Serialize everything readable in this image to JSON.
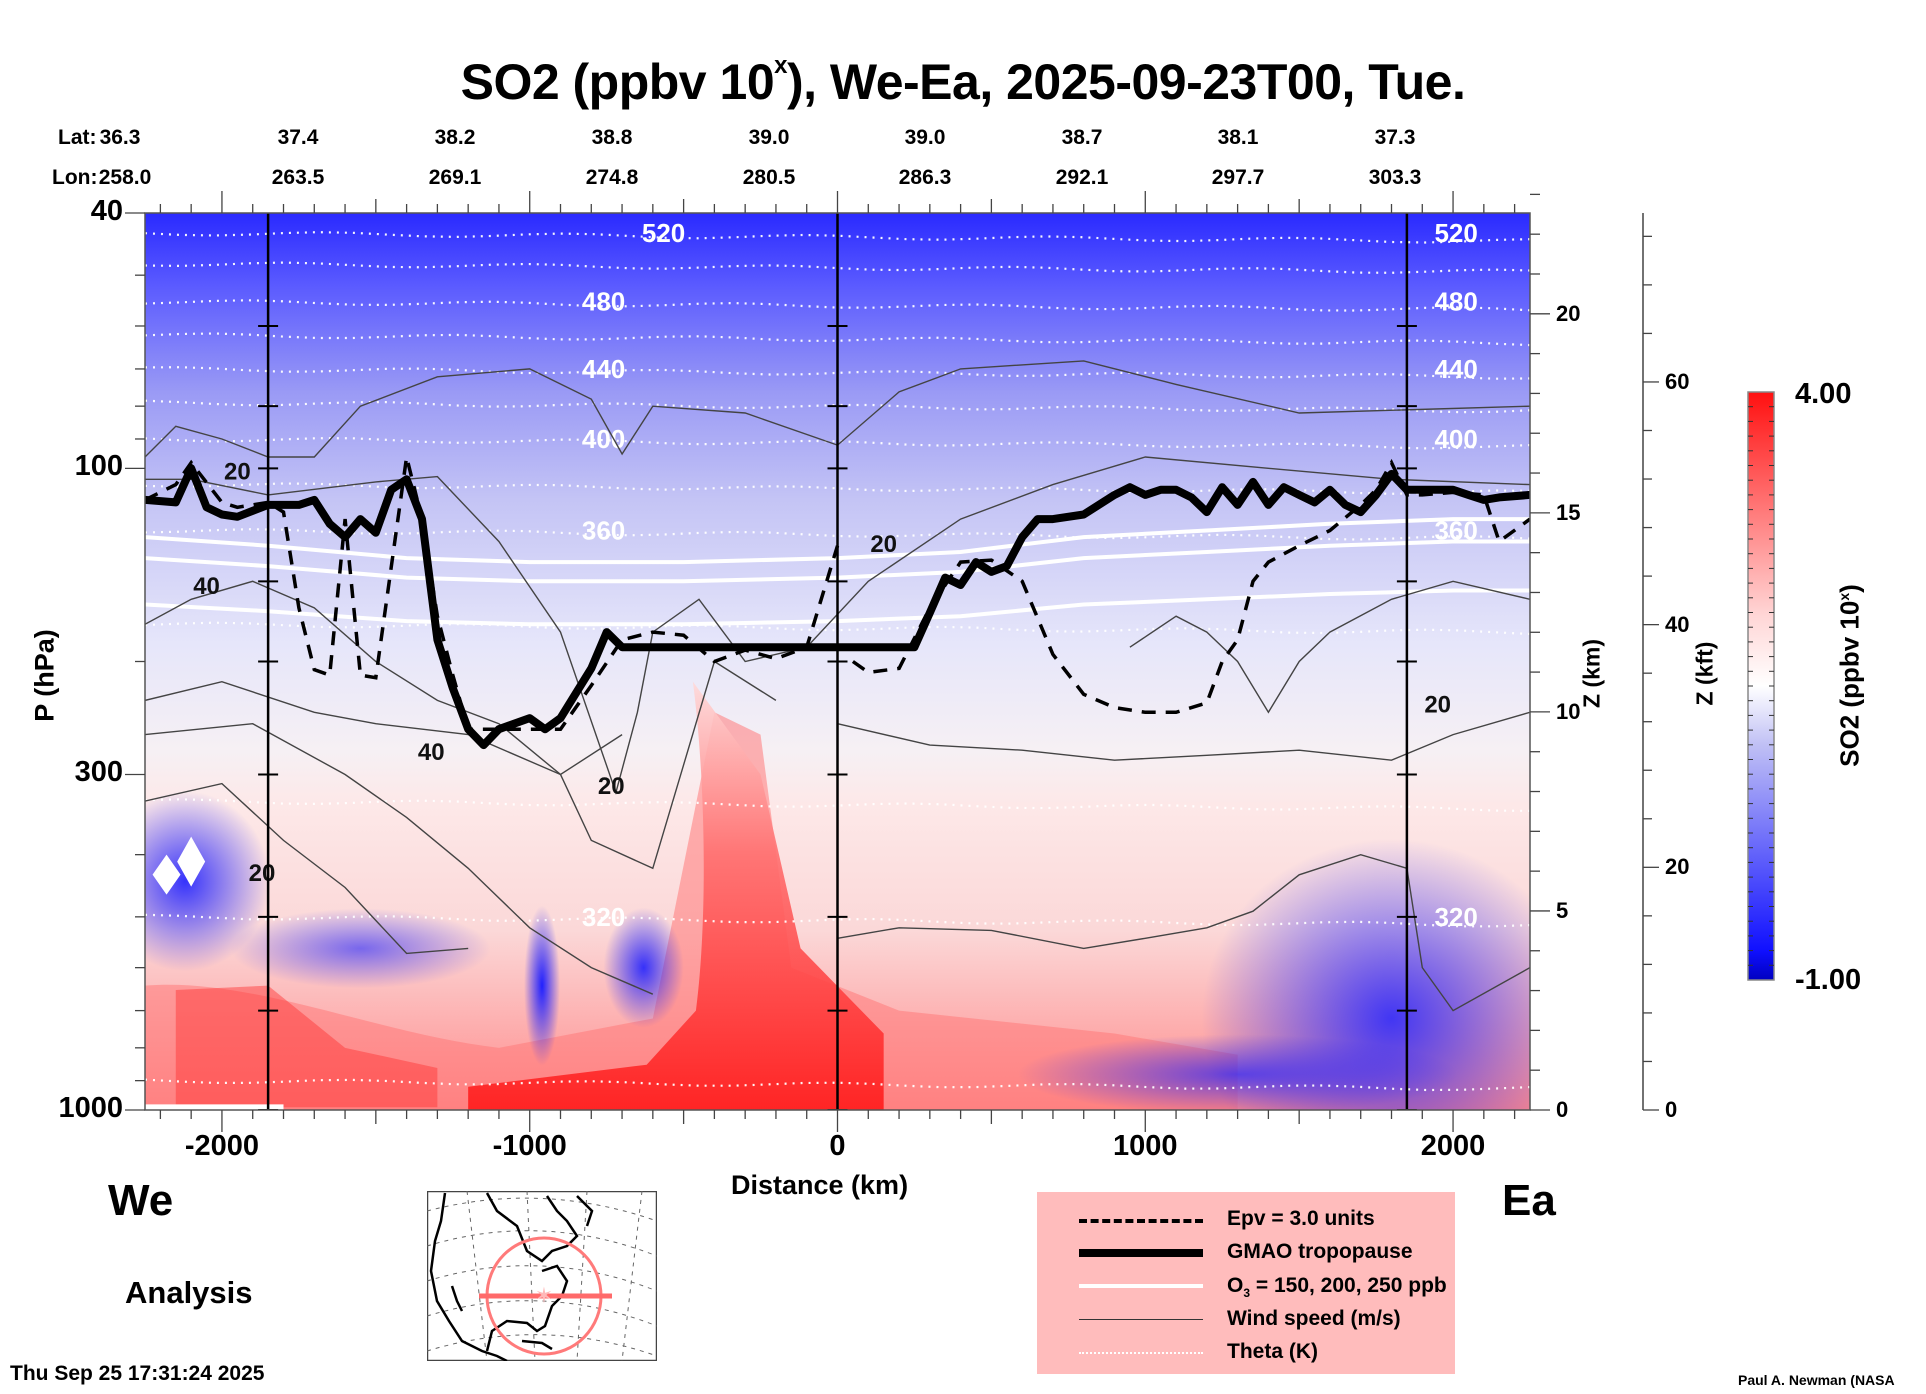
{
  "chart_data": {
    "type": "heatmap",
    "title": "SO2 (ppbv 10",
    "title_sup": "x",
    "title_suffix": "), We-Ea, 2025-09-23T00, Tue.",
    "xlabel": "Distance (km)",
    "ylabel": "P (hPa)",
    "y2label": "Z (km)",
    "y3label": "Z (kft)",
    "colorbar_label": "SO2 (ppbv 10",
    "colorbar_label_sup": "x",
    "colorbar_label_suffix": ")",
    "xlim": [
      -2250,
      2250
    ],
    "ylim_pressure": [
      1000,
      40
    ],
    "y_scale": "log",
    "x_ticks": [
      -2000,
      -1000,
      0,
      1000,
      2000
    ],
    "x_tick_labels": [
      "-2000",
      "-1000",
      "0",
      "1000",
      "2000"
    ],
    "p_ticks": [
      40,
      100,
      300,
      1000
    ],
    "p_tick_labels": [
      "40",
      "100",
      "300",
      "1000"
    ],
    "z_km_ticks": [
      0,
      5,
      10,
      15,
      20
    ],
    "z_km_tick_labels": [
      "0",
      "5",
      "10",
      "15",
      "20"
    ],
    "z_kft_ticks": [
      0,
      20,
      40,
      60
    ],
    "z_kft_tick_labels": [
      "0",
      "20",
      "40",
      "60"
    ],
    "colorbar": {
      "min": -1.0,
      "max": 4.0,
      "min_label": "-1.00",
      "max_label": "4.00",
      "levels": 40,
      "colors": [
        "#0000c8",
        "#2020ff",
        "#ffffff",
        "#ff1a1a"
      ]
    },
    "lat_label": "Lat:",
    "lon_label": "Lon:",
    "section_points": [
      {
        "lat": "36.3",
        "lon": "258.0",
        "x": -2250
      },
      {
        "lat": "37.4",
        "lon": "263.5",
        "x": -1690
      },
      {
        "lat": "38.2",
        "lon": "269.1",
        "x": -1130
      },
      {
        "lat": "38.8",
        "lon": "274.8",
        "x": -570
      },
      {
        "lat": "39.0",
        "lon": "280.5",
        "x": -10
      },
      {
        "lat": "39.0",
        "lon": "286.3",
        "x": 550
      },
      {
        "lat": "38.7",
        "lon": "292.1",
        "x": 1110
      },
      {
        "lat": "38.1",
        "lon": "297.7",
        "x": 1670
      },
      {
        "lat": "37.3",
        "lon": "303.3",
        "x": 2230
      }
    ],
    "vertical_marker_lines_km": [
      -1850,
      0,
      1850
    ],
    "theta_contours_K": [
      {
        "value": 520,
        "label": "520",
        "p": 43
      },
      {
        "value": 500,
        "label": "",
        "p": 48
      },
      {
        "value": 480,
        "label": "480",
        "p": 55
      },
      {
        "value": 460,
        "label": "",
        "p": 62
      },
      {
        "value": 440,
        "label": "440",
        "p": 70
      },
      {
        "value": 420,
        "label": "",
        "p": 79
      },
      {
        "value": 400,
        "label": "400",
        "p": 90
      },
      {
        "value": 380,
        "label": "",
        "p": 106
      },
      {
        "value": 360,
        "label": "360",
        "p": 125
      },
      {
        "value": 340,
        "label": "",
        "p": 175
      },
      {
        "value": 330,
        "label": "",
        "p": 330
      },
      {
        "value": 320,
        "label": "320",
        "p": 500
      },
      {
        "value": 310,
        "label": "",
        "p": 900
      }
    ],
    "wind_speed_labels": [
      {
        "label": "20",
        "x": -1950,
        "p": 104
      },
      {
        "label": "40",
        "x": -2050,
        "p": 157
      },
      {
        "label": "40",
        "x": -1320,
        "p": 285
      },
      {
        "label": "20",
        "x": -735,
        "p": 322
      },
      {
        "label": "20",
        "x": -1870,
        "p": 440
      },
      {
        "label": "20",
        "x": 150,
        "p": 135
      },
      {
        "label": "20",
        "x": 1950,
        "p": 240
      }
    ],
    "tropopause_hPa": {
      "x": [
        -2250,
        -2150,
        -2100,
        -2050,
        -2000,
        -1950,
        -1850,
        -1750,
        -1700,
        -1650,
        -1600,
        -1550,
        -1500,
        -1450,
        -1400,
        -1350,
        -1300,
        -1250,
        -1200,
        -1150,
        -1100,
        -1000,
        -950,
        -900,
        -800,
        -750,
        -700,
        -600,
        -500,
        -400,
        -300,
        -200,
        -100,
        0,
        100,
        250,
        300,
        350,
        400,
        450,
        500,
        550,
        600,
        650,
        700,
        800,
        900,
        950,
        1000,
        1050,
        1100,
        1150,
        1200,
        1250,
        1300,
        1350,
        1400,
        1450,
        1500,
        1550,
        1600,
        1650,
        1700,
        1750,
        1800,
        1850,
        1900,
        2000,
        2050,
        2100,
        2150,
        2250
      ],
      "p": [
        112,
        113,
        100,
        115,
        118,
        119,
        114,
        114,
        112,
        122,
        128,
        120,
        126,
        108,
        104,
        120,
        185,
        220,
        255,
        270,
        255,
        245,
        255,
        245,
        205,
        180,
        190,
        190,
        190,
        190,
        190,
        190,
        190,
        190,
        190,
        190,
        168,
        148,
        152,
        140,
        145,
        142,
        128,
        120,
        120,
        118,
        110,
        107,
        110,
        108,
        108,
        111,
        117,
        107,
        114,
        105,
        114,
        107,
        110,
        113,
        108,
        114,
        117,
        110,
        102,
        108,
        108,
        108,
        110,
        112,
        111,
        110
      ]
    },
    "epv_3pvu_hPa_segments": [
      {
        "x": [
          -2250,
          -2150,
          -2100,
          -2000,
          -1950,
          -1850,
          -1800,
          -1750,
          -1700,
          -1650,
          -1600,
          -1550,
          -1500,
          -1400,
          -1350,
          -1300,
          -1250,
          -1200,
          -1100,
          -1000,
          -900,
          -800,
          -700,
          -600,
          -500,
          -400,
          -300,
          -200,
          -100,
          0
        ],
        "p": [
          112,
          106,
          98,
          113,
          115,
          113,
          117,
          165,
          206,
          210,
          120,
          210,
          212,
          96,
          120,
          170,
          210,
          255,
          255,
          255,
          255,
          218,
          185,
          180,
          182,
          200,
          192,
          198,
          190,
          132
        ]
      },
      {
        "x": [
          50,
          100,
          200,
          300,
          400,
          500,
          600,
          700,
          800,
          900,
          1000,
          1100,
          1200,
          1250,
          1300,
          1350,
          1400,
          1500,
          1600,
          1700,
          1750,
          1800,
          1850,
          1900,
          2000,
          2100,
          2150,
          2250
        ],
        "p": [
          200,
          208,
          205,
          165,
          140,
          139,
          150,
          195,
          225,
          236,
          240,
          240,
          232,
          200,
          185,
          150,
          140,
          132,
          125,
          114,
          108,
          98,
          110,
          110,
          109,
          110,
          130,
          120
        ]
      }
    ],
    "o3_contours_ppb": [
      150,
      200,
      250
    ],
    "legend": {
      "items": [
        {
          "label": "Epv = 3.0 units",
          "style": "dashed-thick"
        },
        {
          "label": "GMAO tropopause",
          "style": "solid-thick"
        },
        {
          "label": "O",
          "sub": "3",
          "label_suffix": " = 150, 200, 250 ppb",
          "style": "solid-white"
        },
        {
          "label": "Wind speed (m/s)",
          "style": "solid-thin"
        },
        {
          "label": "Theta (K)",
          "style": "dotted-white"
        }
      ]
    },
    "direction_left": "We",
    "direction_right": "Ea"
  },
  "footer": {
    "mode": "Analysis",
    "timestamp": "Thu Sep 25 17:31:24 2025",
    "credit": "Paul A. Newman (NASA"
  },
  "inset_map": {
    "description": "locator map: North America, red circle and red section line through eastern US"
  }
}
